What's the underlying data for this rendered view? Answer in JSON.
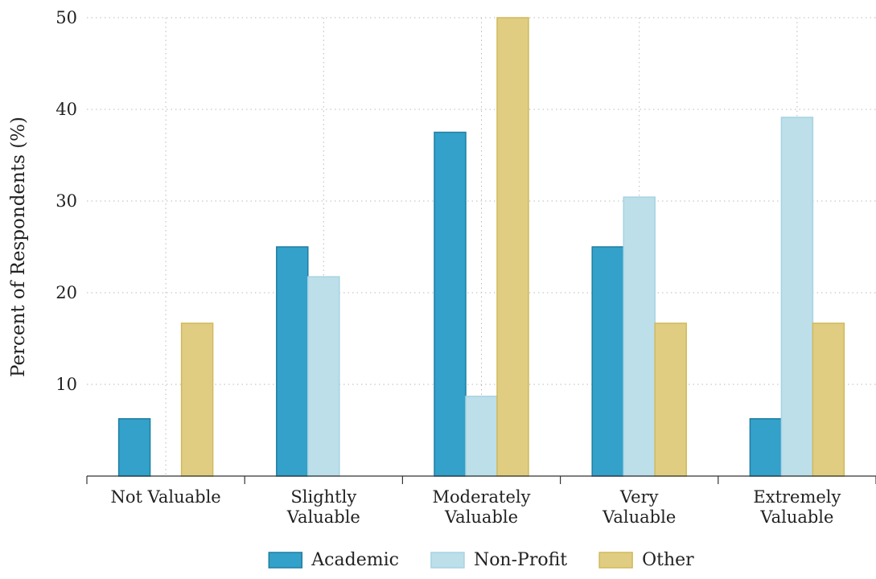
{
  "chart_data": {
    "type": "bar",
    "title": "",
    "xlabel": "",
    "ylabel": "Percent of Respondents (%)",
    "ylim": [
      0,
      50
    ],
    "yticks": [
      10,
      20,
      30,
      40,
      50
    ],
    "grid": true,
    "legend_position": "bottom",
    "categories": [
      [
        "Not Valuable"
      ],
      [
        "Slightly",
        "Valuable"
      ],
      [
        "Moderately",
        "Valuable"
      ],
      [
        "Very",
        "Valuable"
      ],
      [
        "Extremely",
        "Valuable"
      ]
    ],
    "series": [
      {
        "name": "Academic",
        "color": "#33a1c9",
        "edge": "#1f7ea3",
        "values": [
          6.25,
          25.0,
          37.5,
          25.0,
          6.25
        ]
      },
      {
        "name": "Non-Profit",
        "color": "#bcdfea",
        "edge": "#a6d3e2",
        "values": [
          0,
          21.74,
          8.7,
          30.43,
          39.13
        ]
      },
      {
        "name": "Other",
        "color": "#e0cd82",
        "edge": "#d0b95c",
        "values": [
          16.67,
          0,
          50.0,
          16.67,
          16.67
        ]
      }
    ]
  }
}
